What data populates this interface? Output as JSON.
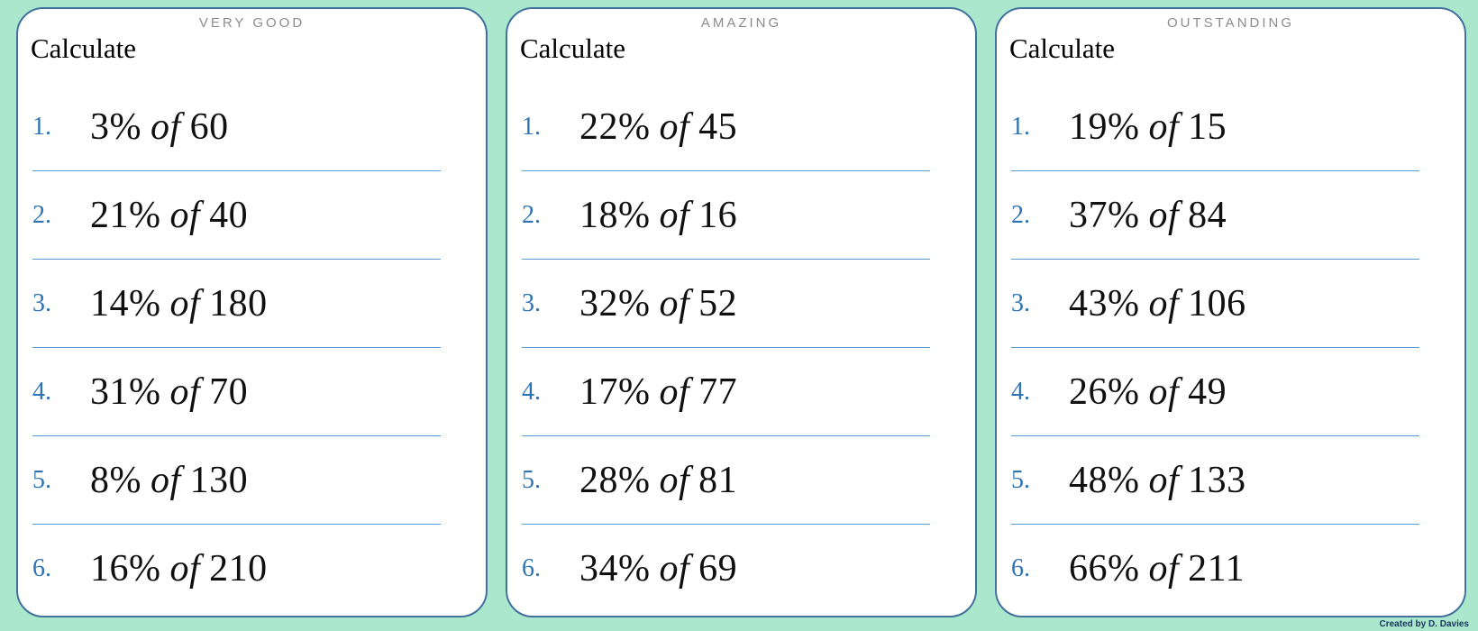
{
  "credit": "Created by D. Davies",
  "colors": {
    "background_mint": "#abe7cc",
    "card_border_blue": "#41719c",
    "divider_blue": "#5b9bd5",
    "number_blue": "#2e74b5",
    "badge_gray": "#8c8c8c",
    "credit_navy": "#17365d"
  },
  "cards": [
    {
      "badge": "VERY GOOD",
      "title": "Calculate",
      "problems": [
        {
          "num": "1.",
          "percent": "3%",
          "of": "of",
          "value": "60"
        },
        {
          "num": "2.",
          "percent": "21%",
          "of": "of",
          "value": "40"
        },
        {
          "num": "3.",
          "percent": "14%",
          "of": "of",
          "value": "180"
        },
        {
          "num": "4.",
          "percent": "31%",
          "of": "of",
          "value": "70"
        },
        {
          "num": "5.",
          "percent": "8%",
          "of": "of",
          "value": "130"
        },
        {
          "num": "6.",
          "percent": "16%",
          "of": "of",
          "value": "210"
        }
      ]
    },
    {
      "badge": "AMAZING",
      "title": "Calculate",
      "problems": [
        {
          "num": "1.",
          "percent": "22%",
          "of": "of",
          "value": "45"
        },
        {
          "num": "2.",
          "percent": "18%",
          "of": "of",
          "value": "16"
        },
        {
          "num": "3.",
          "percent": "32%",
          "of": "of",
          "value": "52"
        },
        {
          "num": "4.",
          "percent": "17%",
          "of": "of",
          "value": "77"
        },
        {
          "num": "5.",
          "percent": "28%",
          "of": "of",
          "value": "81"
        },
        {
          "num": "6.",
          "percent": "34%",
          "of": "of",
          "value": "69"
        }
      ]
    },
    {
      "badge": "OUTSTANDING",
      "title": "Calculate",
      "problems": [
        {
          "num": "1.",
          "percent": "19%",
          "of": "of",
          "value": "15"
        },
        {
          "num": "2.",
          "percent": "37%",
          "of": "of",
          "value": "84"
        },
        {
          "num": "3.",
          "percent": "43%",
          "of": "of",
          "value": "106"
        },
        {
          "num": "4.",
          "percent": "26%",
          "of": "of",
          "value": "49"
        },
        {
          "num": "5.",
          "percent": "48%",
          "of": "of",
          "value": "133"
        },
        {
          "num": "6.",
          "percent": "66%",
          "of": "of",
          "value": "211"
        }
      ]
    }
  ]
}
